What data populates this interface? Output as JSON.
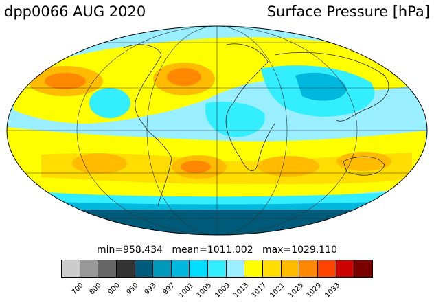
{
  "header": {
    "run_title": "dpp0066 AUG 2020",
    "variable_title": "Surface Pressure [hPa]"
  },
  "stats": {
    "min_label": "min=",
    "min_value": "958.434",
    "mean_label": "mean=",
    "mean_value": "1011.002",
    "max_label": "max=",
    "max_value": "1029.110"
  },
  "colorbar": {
    "colors": [
      "#cccccc",
      "#999999",
      "#666666",
      "#333333",
      "#005a7a",
      "#0099bb",
      "#00b8dd",
      "#00ddff",
      "#33eeff",
      "#99eeff",
      "#ffff00",
      "#ffdd00",
      "#ffbb00",
      "#ff8800",
      "#ff4400",
      "#cc0000",
      "#7a0000"
    ],
    "ticks": [
      "700",
      "800",
      "900",
      "950",
      "993",
      "997",
      "1001",
      "1005",
      "1009",
      "1013",
      "1017",
      "1021",
      "1025",
      "1029",
      "1033"
    ]
  },
  "map": {
    "projection": "mollweide",
    "grid": true
  }
}
